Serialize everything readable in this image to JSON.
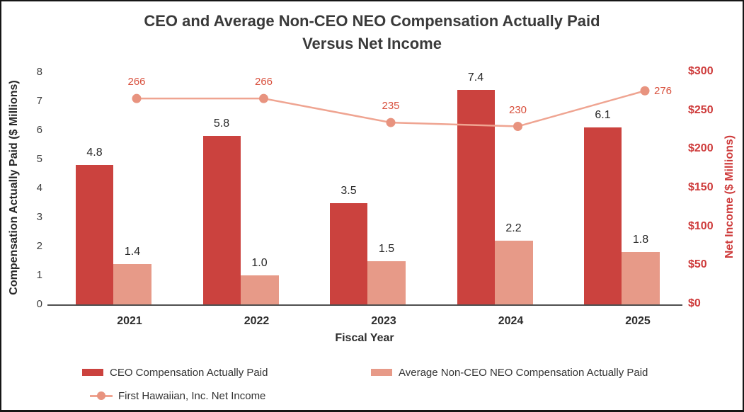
{
  "title": {
    "line1": "CEO and Average Non-CEO NEO Compensation Actually Paid",
    "line2": "Versus Net Income"
  },
  "colors": {
    "right_axis_red": "#ce3b3b",
    "axis_line": "#4f4f4f",
    "dark_text": "#2d2d2d"
  },
  "chart_data": {
    "type": "bar+line combo",
    "title": "CEO and Average Non-CEO NEO Compensation Actually Paid Versus Net Income",
    "xlabel": "Fiscal Year",
    "ylabel_left": "Compensation Actually Paid ($ Millions)",
    "ylabel_right": "Net Income ($ Millions)",
    "ylim_left": [
      0,
      8
    ],
    "ylim_right": [
      0,
      300
    ],
    "grid": "off",
    "legend_position": "bottom-left",
    "categories": [
      "2021",
      "2022",
      "2023",
      "2024",
      "2025"
    ],
    "left_tick_labels": [
      "0",
      "1",
      "2",
      "3",
      "4",
      "5",
      "6",
      "7",
      "8"
    ],
    "right_tick_labels": [
      "$0",
      "$50",
      "$100",
      "$150",
      "$200",
      "$250",
      "$300"
    ],
    "series": [
      {
        "name": "CEO Compensation Actually Paid",
        "type": "bar",
        "axis": "left",
        "values": [
          4.8,
          5.8,
          3.5,
          7.4,
          6.1
        ],
        "labels": [
          "4.8",
          "5.8",
          "3.5",
          "7.4",
          "6.1"
        ],
        "color": "#cb423e"
      },
      {
        "name": "Average Non-CEO NEO Compensation Actually Paid",
        "type": "bar",
        "axis": "left",
        "values": [
          1.4,
          1.0,
          1.5,
          2.2,
          1.8
        ],
        "labels": [
          "1.4",
          "1.0",
          "1.5",
          "2.2",
          "1.8"
        ],
        "color": "#e79a88"
      },
      {
        "name": "First Hawaiian, Inc. Net Income",
        "type": "line",
        "axis": "right",
        "values": [
          266,
          266,
          235,
          230,
          276
        ],
        "labels": [
          "266",
          "266",
          "235",
          "230",
          "276"
        ],
        "color": "#efa491",
        "marker_color": "#e8937f",
        "label_color": "#d84f3c"
      }
    ]
  }
}
